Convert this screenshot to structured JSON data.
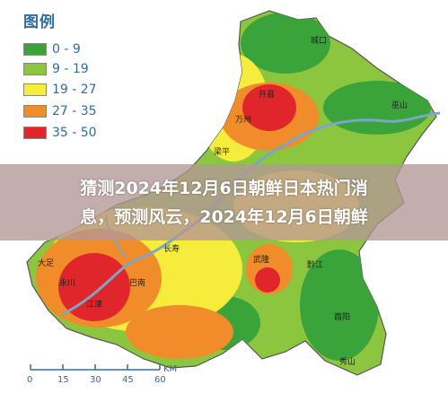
{
  "legend": {
    "title": "图例",
    "items": [
      {
        "label": "0 - 9",
        "color": "#3aa33a"
      },
      {
        "label": "9 - 19",
        "color": "#8cc63f"
      },
      {
        "label": "19 - 27",
        "color": "#f5ec3c"
      },
      {
        "label": "27 - 35",
        "color": "#f08c2a"
      },
      {
        "label": "35 - 50",
        "color": "#e0262a"
      }
    ]
  },
  "places": [
    "城口",
    "开县",
    "万州",
    "巫山",
    "梁平",
    "长寿",
    "大足",
    "永川",
    "江津",
    "巴南",
    "武隆",
    "黔江",
    "酉阳",
    "秀山"
  ],
  "scale_bar": {
    "ticks": [
      "0",
      "15",
      "30",
      "45",
      "60"
    ],
    "unit": "KM"
  },
  "banner": {
    "line1": "猜测2024年12月6日朝鲜日本热门消",
    "line2": "息，预测风云，2024年12月6日朝鲜"
  }
}
